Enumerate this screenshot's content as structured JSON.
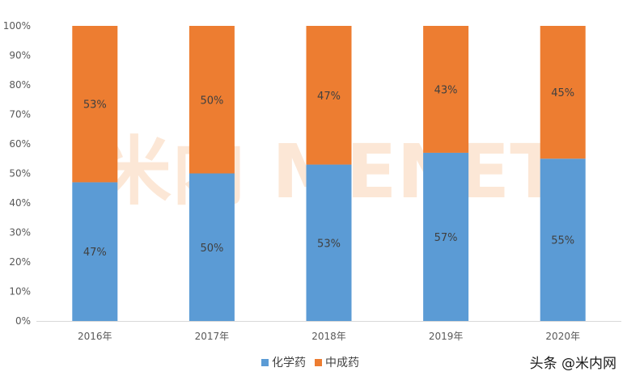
{
  "chart_data": {
    "type": "bar",
    "stacked": true,
    "percent_stacked": true,
    "categories": [
      "2016年",
      "2017年",
      "2018年",
      "2019年",
      "2020年"
    ],
    "series": [
      {
        "name": "化学药",
        "values": [
          47,
          50,
          53,
          57,
          55
        ],
        "labels": [
          "47%",
          "50%",
          "53%",
          "57%",
          "55%"
        ],
        "color": "#5b9bd5"
      },
      {
        "name": "中成药",
        "values": [
          53,
          50,
          47,
          43,
          45
        ],
        "labels": [
          "53%",
          "50%",
          "47%",
          "43%",
          "45%"
        ],
        "color": "#ed7d31"
      }
    ],
    "ylim": [
      0,
      100
    ],
    "yticks": [
      "0%",
      "10%",
      "20%",
      "30%",
      "40%",
      "50%",
      "60%",
      "70%",
      "80%",
      "90%",
      "100%"
    ],
    "grid": false,
    "legend": "bottom-center",
    "title": "",
    "xlabel": "",
    "ylabel": ""
  },
  "watermark": {
    "text": "米内 MENET",
    "color": "#f4c09a"
  },
  "credit": {
    "text": "头条 @米内网"
  }
}
